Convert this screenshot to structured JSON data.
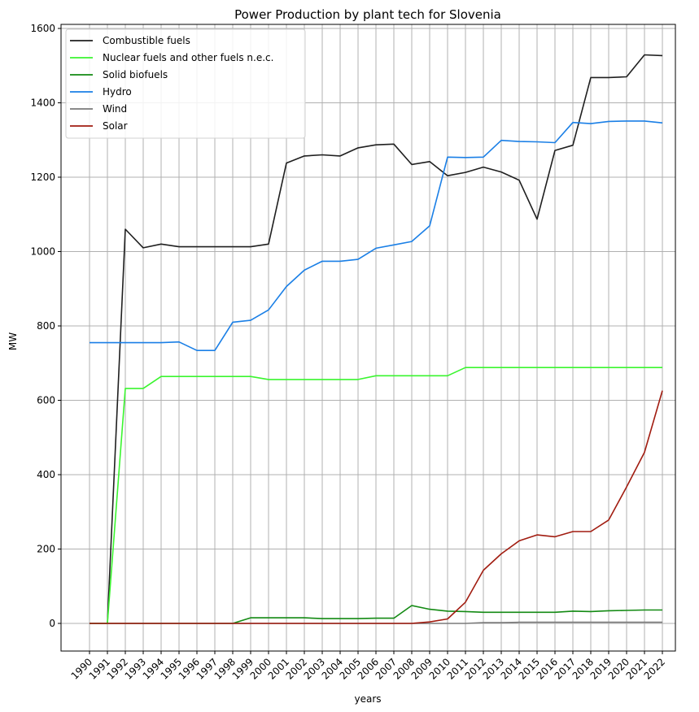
{
  "chart_data": {
    "type": "line",
    "title": "Power Production by plant tech for Slovenia",
    "xlabel": "years",
    "ylabel": "MW",
    "ylim": [
      -75,
      1600
    ],
    "yticks": [
      0,
      200,
      400,
      600,
      800,
      1000,
      1200,
      1400,
      1600
    ],
    "grid": true,
    "legend_position": "top-left",
    "x": [
      "1990",
      "1991",
      "1992",
      "1993",
      "1994",
      "1995",
      "1996",
      "1997",
      "1998",
      "1999",
      "2000",
      "2001",
      "2002",
      "2003",
      "2004",
      "2005",
      "2006",
      "2007",
      "2008",
      "2009",
      "2010",
      "2011",
      "2012",
      "2013",
      "2014",
      "2015",
      "2016",
      "2017",
      "2018",
      "2019",
      "2020",
      "2021",
      "2022"
    ],
    "series": [
      {
        "name": "Combustible fuels",
        "color": "#1f1f1f",
        "values": [
          0,
          0,
          1060,
          1010,
          1020,
          1013,
          1013,
          1013,
          1013,
          1013,
          1020,
          1238,
          1257,
          1260,
          1257,
          1279,
          1287,
          1289,
          1234,
          1242,
          1204,
          1213,
          1227,
          1214,
          1192,
          1087,
          1272,
          1286,
          1468,
          1468,
          1470,
          1529,
          1527
        ]
      },
      {
        "name": "Nuclear fuels and other fuels n.e.c.",
        "color": "#3af52f",
        "values": [
          0,
          0,
          632,
          632,
          664,
          664,
          664,
          664,
          664,
          664,
          656,
          656,
          656,
          656,
          656,
          656,
          666,
          666,
          666,
          666,
          666,
          688,
          688,
          688,
          688,
          688,
          688,
          688,
          688,
          688,
          688,
          688,
          688
        ]
      },
      {
        "name": "Solid biofuels",
        "color": "#138a13",
        "values": [
          0,
          0,
          0,
          0,
          0,
          0,
          0,
          0,
          0,
          15,
          15,
          15,
          15,
          13,
          13,
          13,
          14,
          14,
          48,
          38,
          33,
          32,
          30,
          30,
          30,
          30,
          30,
          33,
          32,
          34,
          35,
          36,
          36
        ]
      },
      {
        "name": "Hydro",
        "color": "#1a7fe6",
        "values": [
          755,
          755,
          755,
          755,
          755,
          757,
          734,
          734,
          810,
          815,
          843,
          906,
          950,
          974,
          974,
          979,
          1009,
          1018,
          1027,
          1069,
          1254,
          1253,
          1254,
          1299,
          1296,
          1295,
          1293,
          1347,
          1344,
          1350,
          1351,
          1351,
          1346
        ]
      },
      {
        "name": "Wind",
        "color": "#7a7a7a",
        "values": [
          0,
          0,
          0,
          0,
          0,
          0,
          0,
          0,
          0,
          0,
          0,
          0,
          0,
          0,
          0,
          0,
          0,
          0,
          0,
          0,
          0,
          0,
          2,
          2,
          3,
          3,
          3,
          3,
          3,
          3,
          3,
          3,
          3
        ]
      },
      {
        "name": "Solar",
        "color": "#a11c10",
        "values": [
          0,
          0,
          0,
          0,
          0,
          0,
          0,
          0,
          0,
          0,
          0,
          0,
          0,
          0,
          0,
          0,
          0,
          0,
          0,
          4,
          12,
          57,
          143,
          187,
          222,
          238,
          233,
          247,
          247,
          278,
          367,
          460,
          626
        ]
      }
    ]
  }
}
